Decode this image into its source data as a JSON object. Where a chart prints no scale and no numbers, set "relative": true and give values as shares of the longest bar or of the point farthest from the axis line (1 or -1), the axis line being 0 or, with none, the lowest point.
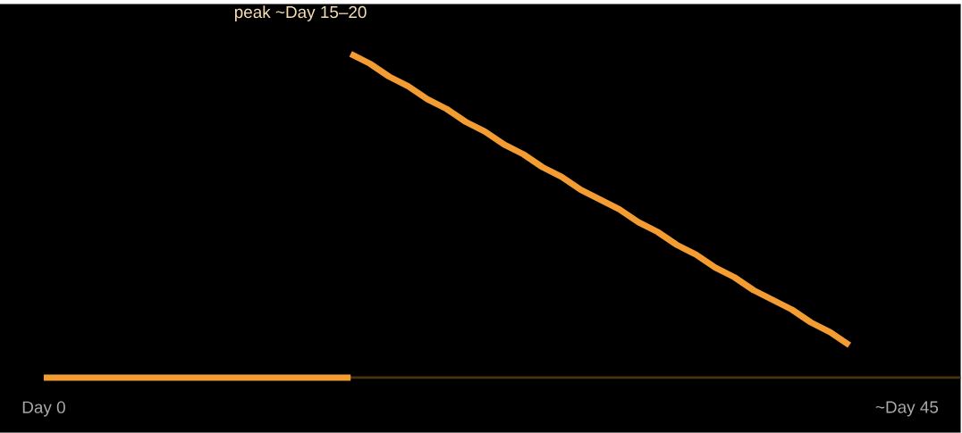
{
  "chart_data": {
    "type": "line",
    "relative": true,
    "categories": [
      "Day 0",
      null,
      null,
      null,
      null,
      null,
      null,
      null,
      null,
      null,
      null,
      null,
      null,
      null,
      null,
      null,
      null,
      null,
      null,
      null,
      null,
      null,
      null,
      null,
      null,
      null,
      null,
      null,
      null,
      null,
      null,
      null,
      null,
      null,
      null,
      null,
      null,
      null,
      null,
      null,
      null,
      null,
      null,
      null,
      null,
      "~Day 45",
      null,
      null
    ],
    "series": [
      {
        "color": "#f39c32",
        "values": [
          0,
          0,
          0,
          0,
          0,
          0,
          0,
          0,
          0,
          0,
          0,
          0,
          0,
          0,
          0,
          0,
          0,
          null,
          null,
          null,
          null,
          null,
          null,
          null,
          null,
          null,
          null,
          null,
          null,
          null,
          null,
          null,
          null,
          null,
          null,
          null,
          null,
          null,
          null,
          null,
          null,
          null,
          null,
          null,
          null,
          null,
          null,
          null
        ]
      },
      {
        "color": "#f39c32",
        "values": [
          null,
          null,
          null,
          null,
          null,
          null,
          null,
          null,
          null,
          null,
          null,
          null,
          null,
          null,
          null,
          null,
          1.0,
          0.97,
          0.93,
          0.9,
          0.86,
          0.83,
          0.79,
          0.76,
          0.72,
          0.69,
          0.65,
          0.62,
          0.58,
          0.55,
          0.52,
          0.48,
          0.45,
          0.41,
          0.38,
          0.34,
          0.31,
          0.27,
          0.24,
          0.21,
          0.17,
          0.14,
          0.1,
          null,
          null,
          null,
          null,
          null
        ]
      }
    ],
    "annotations": [
      "peak ~Day 15–20"
    ]
  }
}
